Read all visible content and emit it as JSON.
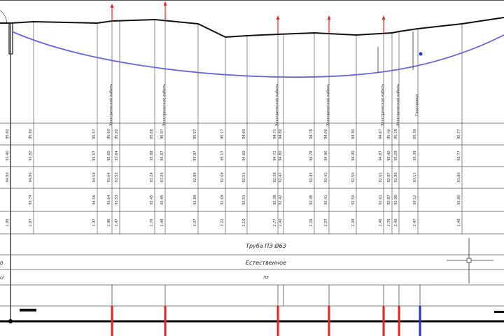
{
  "colors": {
    "ground": "#111111",
    "pipe": "#6666dd",
    "crossing": "#ee2222",
    "marker_blue": "#2233dd",
    "grid": "#555555"
  },
  "rows": {
    "pipe_label": "Труба ПЭ Ø63",
    "soil_label": "Естественное",
    "material_label": "ПЭ",
    "left_row_label_1": "0",
    "left_row_label_2": "U"
  },
  "crossing_labels": [
    "Электрический кабель",
    "Электрический кабель",
    "Электрический кабель",
    "Электрический кабель",
    "Электрический кабель",
    "Электрический кабель",
    "Газопровод"
  ],
  "columns": [
    {
      "values": [
        "95.80",
        "93.40",
        "94.80",
        "",
        "1.88"
      ]
    },
    {
      "values": [
        "95.80",
        "93.80",
        "94.80",
        "93.74",
        "1.97"
      ]
    },
    {
      "values": [
        "95.57",
        "95.57",
        "94.58",
        "94.56",
        "1.47"
      ]
    },
    {
      "values": [
        "95.60",
        "95.60",
        "93.64",
        "93.64",
        "1.96"
      ]
    },
    {
      "values": [
        "95.80",
        "93.84",
        "93.53",
        "93.53",
        "1.47"
      ]
    },
    {
      "values": [
        "95.88",
        "95.88",
        "93.24",
        "93.45",
        "1.76"
      ]
    },
    {
      "values": [
        "95.97",
        "95.97",
        "93.04",
        "92.95",
        "1.48"
      ]
    },
    {
      "values": [
        "95.97",
        "95.97",
        "92.89",
        "92.89",
        "3.07"
      ]
    },
    {
      "values": [
        "95.17",
        "95.17",
        "92.69",
        "92.69",
        "3.22"
      ]
    },
    {
      "values": [
        "94.60",
        "94.60",
        "92.51",
        "92.51",
        "2.10"
      ]
    },
    {
      "values": [
        "94.71",
        "94.71",
        "92.38",
        "92.38",
        "2.77"
      ]
    },
    {
      "values": [
        "94.80",
        "94.80",
        "92.42",
        "92.42",
        "2.40"
      ]
    },
    {
      "values": [
        "94.78",
        "94.78",
        "92.45",
        "92.45",
        "2.26"
      ]
    },
    {
      "values": [
        "94.90",
        "94.90",
        "92.41",
        "92.41",
        "2.07"
      ]
    },
    {
      "values": [
        "94.90",
        "94.90",
        "92.50",
        "92.50",
        "2.39"
      ]
    },
    {
      "values": [
        "94.87",
        "94.87",
        "92.61",
        "92.61",
        "2.46"
      ]
    },
    {
      "values": [
        "95.40",
        "95.40",
        "92.87",
        "92.87",
        "2.76"
      ]
    },
    {
      "values": [
        "95.29",
        "95.29",
        "92.90",
        "92.90",
        "2.40"
      ]
    },
    {
      "values": [
        "95.39",
        "95.39",
        "93.12",
        "93.12",
        "2.47"
      ]
    },
    {
      "values": [
        "95.77",
        "95.77",
        "93.80",
        "93.80",
        "1.48"
      ]
    }
  ]
}
